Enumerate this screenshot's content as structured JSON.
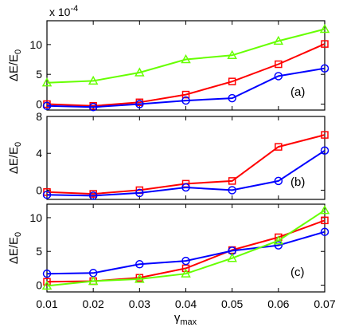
{
  "chart_data": [
    {
      "type": "line",
      "panel_tag": "(a)",
      "ylabel": "ΔE/E",
      "ylabel_sub": "0",
      "scale_note": "x 10",
      "scale_note_exp": "-4",
      "x": [
        0.01,
        0.02,
        0.03,
        0.04,
        0.05,
        0.06,
        0.07
      ],
      "xlim": [
        0.01,
        0.07
      ],
      "ylim": [
        -1,
        14
      ],
      "yticks": [
        "0",
        "5",
        "10"
      ],
      "ytick_values": [
        0,
        5,
        10
      ],
      "series": [
        {
          "color": "#ff0000",
          "marker": "square",
          "values": [
            0.0,
            -0.3,
            0.3,
            1.6,
            3.8,
            6.7,
            10.1
          ]
        },
        {
          "color": "#0000ff",
          "marker": "circle",
          "values": [
            -0.3,
            -0.5,
            0.0,
            0.6,
            1.0,
            4.7,
            6.0
          ]
        },
        {
          "color": "#66ff00",
          "marker": "triangle",
          "values": [
            3.6,
            3.9,
            5.3,
            7.5,
            8.2,
            10.6,
            12.6
          ]
        }
      ]
    },
    {
      "type": "line",
      "panel_tag": "(b)",
      "ylabel": "ΔE/E",
      "ylabel_sub": "0",
      "x": [
        0.01,
        0.02,
        0.03,
        0.04,
        0.05,
        0.06,
        0.07
      ],
      "xlim": [
        0.01,
        0.07
      ],
      "ylim": [
        -1,
        8
      ],
      "yticks": [
        "0",
        "4",
        "8"
      ],
      "ytick_values": [
        0,
        4,
        8
      ],
      "series": [
        {
          "color": "#ff0000",
          "marker": "square",
          "values": [
            -0.2,
            -0.4,
            0.0,
            0.7,
            1.0,
            4.7,
            6.0
          ]
        },
        {
          "color": "#0000ff",
          "marker": "circle",
          "values": [
            -0.5,
            -0.6,
            -0.3,
            0.3,
            0.0,
            1.0,
            4.3
          ]
        }
      ]
    },
    {
      "type": "line",
      "panel_tag": "(c)",
      "ylabel": "ΔE/E",
      "ylabel_sub": "0",
      "x": [
        0.01,
        0.02,
        0.03,
        0.04,
        0.05,
        0.06,
        0.07
      ],
      "xlim": [
        0.01,
        0.07
      ],
      "ylim": [
        -1,
        12
      ],
      "yticks": [
        "0",
        "5",
        "10"
      ],
      "ytick_values": [
        0,
        5,
        10
      ],
      "xticks": [
        "0.01",
        "0.02",
        "0.03",
        "0.04",
        "0.05",
        "0.06",
        "0.07"
      ],
      "xlabel": "γ",
      "xlabel_sub": "max",
      "series": [
        {
          "color": "#ff0000",
          "marker": "square",
          "values": [
            0.5,
            0.6,
            1.1,
            2.5,
            5.2,
            7.1,
            9.6
          ]
        },
        {
          "color": "#0000ff",
          "marker": "circle",
          "values": [
            1.7,
            1.8,
            3.1,
            3.6,
            5.1,
            5.9,
            7.9
          ]
        },
        {
          "color": "#66ff00",
          "marker": "triangle",
          "values": [
            -0.1,
            0.6,
            0.9,
            1.7,
            4.0,
            6.6,
            11.1
          ]
        }
      ]
    }
  ]
}
